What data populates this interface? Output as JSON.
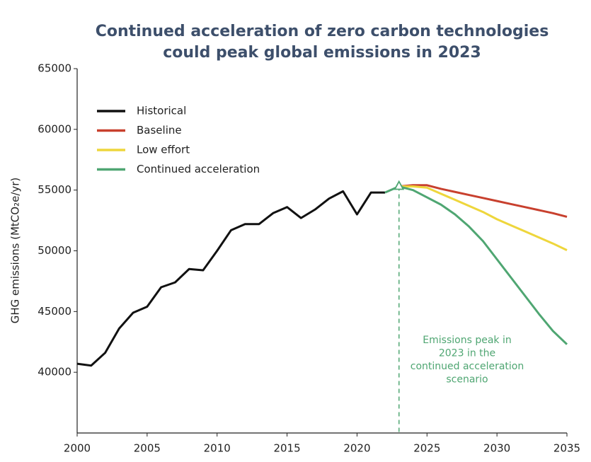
{
  "chart_data": {
    "type": "line",
    "title": [
      "Continued acceleration of zero carbon technologies",
      "could peak global emissions in 2023"
    ],
    "ylabel": "GHG emissions (MtCO₂e/yr)",
    "x": [
      2000,
      2001,
      2002,
      2003,
      2004,
      2005,
      2006,
      2007,
      2008,
      2009,
      2010,
      2011,
      2012,
      2013,
      2014,
      2015,
      2016,
      2017,
      2018,
      2019,
      2020,
      2021,
      2022,
      2023,
      2024,
      2025,
      2026,
      2027,
      2028,
      2029,
      2030,
      2031,
      2032,
      2033,
      2034,
      2035
    ],
    "series": [
      {
        "name": "Historical",
        "color": "#111111",
        "values": [
          40700,
          40550,
          41600,
          43600,
          44900,
          45400,
          47000,
          47400,
          48500,
          48400,
          50000,
          51700,
          52200,
          52200,
          53100,
          53600,
          52700,
          53400,
          54300,
          54900,
          53000,
          54800,
          54800,
          null,
          null,
          null,
          null,
          null,
          null,
          null,
          null,
          null,
          null,
          null,
          null,
          null
        ]
      },
      {
        "name": "Baseline",
        "color": "#c8402e",
        "values": [
          null,
          null,
          null,
          null,
          null,
          null,
          null,
          null,
          null,
          null,
          null,
          null,
          null,
          null,
          null,
          null,
          null,
          null,
          null,
          null,
          null,
          null,
          null,
          55300,
          55400,
          55400,
          55100,
          54850,
          54600,
          54350,
          54100,
          53850,
          53600,
          53350,
          53100,
          52800
        ]
      },
      {
        "name": "Low effort",
        "color": "#eed63c",
        "values": [
          null,
          null,
          null,
          null,
          null,
          null,
          null,
          null,
          null,
          null,
          null,
          null,
          null,
          null,
          null,
          null,
          null,
          null,
          null,
          null,
          null,
          null,
          null,
          55300,
          55300,
          55200,
          54700,
          54200,
          53700,
          53200,
          52600,
          52100,
          51600,
          51100,
          50600,
          50050
        ]
      },
      {
        "name": "Continued acceleration",
        "color": "#4fa672",
        "values": [
          null,
          null,
          null,
          null,
          null,
          null,
          null,
          null,
          null,
          null,
          null,
          null,
          null,
          null,
          null,
          null,
          null,
          null,
          null,
          null,
          null,
          null,
          54800,
          55300,
          55000,
          54400,
          53800,
          53000,
          52000,
          50800,
          49300,
          47800,
          46300,
          44800,
          43400,
          42300
        ]
      }
    ],
    "xlim": [
      2000,
      2035
    ],
    "xticks": [
      2000,
      2005,
      2010,
      2015,
      2020,
      2025,
      2030,
      2035
    ],
    "ylim": [
      35000,
      65000
    ],
    "yticks": [
      40000,
      45000,
      50000,
      55000,
      60000,
      65000
    ],
    "legend": "upper left",
    "annotation": {
      "x": 2023,
      "y": 55300,
      "color": "#4fa672",
      "text": [
        "Emissions peak in",
        "2023 in the",
        "continued acceleration",
        "scenario"
      ]
    }
  }
}
